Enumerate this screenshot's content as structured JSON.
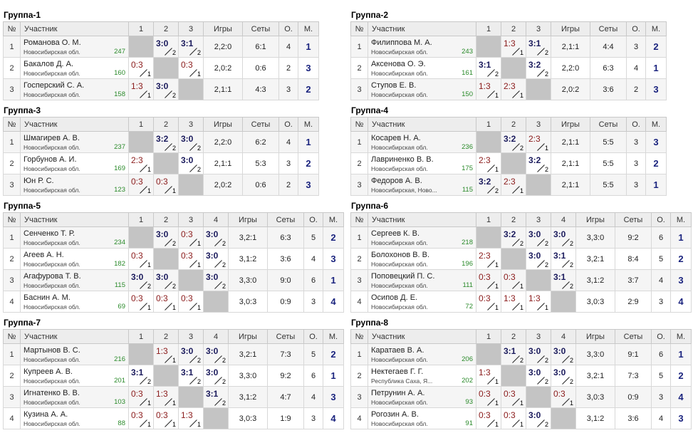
{
  "headers": {
    "num": "№",
    "name": "Участник",
    "games": "Игры",
    "sets": "Сеты",
    "points": "О.",
    "place": "М."
  },
  "groups": [
    {
      "title": "Группа-1",
      "players": [
        {
          "num": "1",
          "name": "Романова О. М.",
          "region": "Новосибирская обл.",
          "rating": "247",
          "cells": [
            null,
            {
              "s": "3:0",
              "w": "2",
              "r": "win"
            },
            {
              "s": "3:1",
              "w": "2",
              "r": "win"
            }
          ],
          "games": "2,2:0",
          "sets": "6:1",
          "points": "4",
          "place": "1"
        },
        {
          "num": "2",
          "name": "Бакалов Д. А.",
          "region": "Новосибирская обл.",
          "rating": "160",
          "cells": [
            {
              "s": "0:3",
              "w": "1",
              "r": "loss"
            },
            null,
            {
              "s": "0:3",
              "w": "1",
              "r": "loss"
            }
          ],
          "games": "2,0:2",
          "sets": "0:6",
          "points": "2",
          "place": "3"
        },
        {
          "num": "3",
          "name": "Госперский С. А.",
          "region": "Новосибирская обл.",
          "rating": "158",
          "cells": [
            {
              "s": "1:3",
              "w": "1",
              "r": "loss"
            },
            {
              "s": "3:0",
              "w": "2",
              "r": "win"
            },
            null
          ],
          "games": "2,1:1",
          "sets": "4:3",
          "points": "3",
          "place": "2"
        }
      ]
    },
    {
      "title": "Группа-2",
      "players": [
        {
          "num": "1",
          "name": "Филиппова М. А.",
          "region": "Новосибирская обл.",
          "rating": "243",
          "cells": [
            null,
            {
              "s": "1:3",
              "w": "1",
              "r": "loss"
            },
            {
              "s": "3:1",
              "w": "2",
              "r": "win"
            }
          ],
          "games": "2,1:1",
          "sets": "4:4",
          "points": "3",
          "place": "2"
        },
        {
          "num": "2",
          "name": "Аксенова О. Э.",
          "region": "Новосибирская обл.",
          "rating": "161",
          "cells": [
            {
              "s": "3:1",
              "w": "2",
              "r": "win"
            },
            null,
            {
              "s": "3:2",
              "w": "2",
              "r": "win"
            }
          ],
          "games": "2,2:0",
          "sets": "6:3",
          "points": "4",
          "place": "1"
        },
        {
          "num": "3",
          "name": "Ступов Е. В.",
          "region": "Новосибирская обл.",
          "rating": "150",
          "cells": [
            {
              "s": "1:3",
              "w": "1",
              "r": "loss"
            },
            {
              "s": "2:3",
              "w": "1",
              "r": "loss"
            },
            null
          ],
          "games": "2,0:2",
          "sets": "3:6",
          "points": "2",
          "place": "3"
        }
      ]
    },
    {
      "title": "Группа-3",
      "players": [
        {
          "num": "1",
          "name": "Шмагирев А. В.",
          "region": "Новосибирская обл.",
          "rating": "237",
          "cells": [
            null,
            {
              "s": "3:2",
              "w": "2",
              "r": "win"
            },
            {
              "s": "3:0",
              "w": "2",
              "r": "win"
            }
          ],
          "games": "2,2:0",
          "sets": "6:2",
          "points": "4",
          "place": "1"
        },
        {
          "num": "2",
          "name": "Горбунов А. И.",
          "region": "Новосибирская обл.",
          "rating": "169",
          "cells": [
            {
              "s": "2:3",
              "w": "1",
              "r": "loss"
            },
            null,
            {
              "s": "3:0",
              "w": "2",
              "r": "win"
            }
          ],
          "games": "2,1:1",
          "sets": "5:3",
          "points": "3",
          "place": "2"
        },
        {
          "num": "3",
          "name": "Юн Р. С.",
          "region": "Новосибирская обл.",
          "rating": "123",
          "cells": [
            {
              "s": "0:3",
              "w": "1",
              "r": "loss"
            },
            {
              "s": "0:3",
              "w": "1",
              "r": "loss"
            },
            null
          ],
          "games": "2,0:2",
          "sets": "0:6",
          "points": "2",
          "place": "3"
        }
      ]
    },
    {
      "title": "Группа-4",
      "players": [
        {
          "num": "1",
          "name": "Косарев Н. А.",
          "region": "Новосибирская обл.",
          "rating": "236",
          "cells": [
            null,
            {
              "s": "3:2",
              "w": "2",
              "r": "win"
            },
            {
              "s": "2:3",
              "w": "1",
              "r": "loss"
            }
          ],
          "games": "2,1:1",
          "sets": "5:5",
          "points": "3",
          "place": "3"
        },
        {
          "num": "2",
          "name": "Лавриненко В. В.",
          "region": "Новосибирская обл.",
          "rating": "175",
          "cells": [
            {
              "s": "2:3",
              "w": "1",
              "r": "loss"
            },
            null,
            {
              "s": "3:2",
              "w": "2",
              "r": "win"
            }
          ],
          "games": "2,1:1",
          "sets": "5:5",
          "points": "3",
          "place": "2"
        },
        {
          "num": "3",
          "name": "Федоров А. В.",
          "region": "Новосибирская, Ново...",
          "rating": "115",
          "cells": [
            {
              "s": "3:2",
              "w": "2",
              "r": "win"
            },
            {
              "s": "2:3",
              "w": "1",
              "r": "loss"
            },
            null
          ],
          "games": "2,1:1",
          "sets": "5:5",
          "points": "3",
          "place": "1"
        }
      ]
    },
    {
      "title": "Группа-5",
      "players": [
        {
          "num": "1",
          "name": "Сенченко Т. Р.",
          "region": "Новосибирская обл.",
          "rating": "234",
          "cells": [
            null,
            {
              "s": "3:0",
              "w": "2",
              "r": "win"
            },
            {
              "s": "0:3",
              "w": "1",
              "r": "loss"
            },
            {
              "s": "3:0",
              "w": "2",
              "r": "win"
            }
          ],
          "games": "3,2:1",
          "sets": "6:3",
          "points": "5",
          "place": "2"
        },
        {
          "num": "2",
          "name": "Агеев А. Н.",
          "region": "Новосибирская обл.",
          "rating": "182",
          "cells": [
            {
              "s": "0:3",
              "w": "1",
              "r": "loss"
            },
            null,
            {
              "s": "0:3",
              "w": "1",
              "r": "loss"
            },
            {
              "s": "3:0",
              "w": "2",
              "r": "win"
            }
          ],
          "games": "3,1:2",
          "sets": "3:6",
          "points": "4",
          "place": "3"
        },
        {
          "num": "3",
          "name": "Агафурова Т. В.",
          "region": "Новосибирская обл.",
          "rating": "115",
          "cells": [
            {
              "s": "3:0",
              "w": "2",
              "r": "win"
            },
            {
              "s": "3:0",
              "w": "2",
              "r": "win"
            },
            null,
            {
              "s": "3:0",
              "w": "2",
              "r": "win"
            }
          ],
          "games": "3,3:0",
          "sets": "9:0",
          "points": "6",
          "place": "1"
        },
        {
          "num": "4",
          "name": "Баснин А. М.",
          "region": "Новосибирская обл.",
          "rating": "69",
          "cells": [
            {
              "s": "0:3",
              "w": "1",
              "r": "loss"
            },
            {
              "s": "0:3",
              "w": "1",
              "r": "loss"
            },
            {
              "s": "0:3",
              "w": "1",
              "r": "loss"
            },
            null
          ],
          "games": "3,0:3",
          "sets": "0:9",
          "points": "3",
          "place": "4"
        }
      ]
    },
    {
      "title": "Группа-6",
      "players": [
        {
          "num": "1",
          "name": "Сергеев К. В.",
          "region": "Новосибирская обл.",
          "rating": "218",
          "cells": [
            null,
            {
              "s": "3:2",
              "w": "2",
              "r": "win"
            },
            {
              "s": "3:0",
              "w": "2",
              "r": "win"
            },
            {
              "s": "3:0",
              "w": "2",
              "r": "win"
            }
          ],
          "games": "3,3:0",
          "sets": "9:2",
          "points": "6",
          "place": "1"
        },
        {
          "num": "2",
          "name": "Болохонов В. В.",
          "region": "Новосибирская обл.",
          "rating": "196",
          "cells": [
            {
              "s": "2:3",
              "w": "1",
              "r": "loss"
            },
            null,
            {
              "s": "3:0",
              "w": "2",
              "r": "win"
            },
            {
              "s": "3:1",
              "w": "2",
              "r": "win"
            }
          ],
          "games": "3,2:1",
          "sets": "8:4",
          "points": "5",
          "place": "2"
        },
        {
          "num": "3",
          "name": "Поповецкий П. С.",
          "region": "Новосибирская обл.",
          "rating": "111",
          "cells": [
            {
              "s": "0:3",
              "w": "1",
              "r": "loss"
            },
            {
              "s": "0:3",
              "w": "1",
              "r": "loss"
            },
            null,
            {
              "s": "3:1",
              "w": "2",
              "r": "win"
            }
          ],
          "games": "3,1:2",
          "sets": "3:7",
          "points": "4",
          "place": "3"
        },
        {
          "num": "4",
          "name": "Осипов Д. Е.",
          "region": "Новосибирская обл.",
          "rating": "72",
          "cells": [
            {
              "s": "0:3",
              "w": "1",
              "r": "loss"
            },
            {
              "s": "1:3",
              "w": "1",
              "r": "loss"
            },
            {
              "s": "1:3",
              "w": "1",
              "r": "loss"
            },
            null
          ],
          "games": "3,0:3",
          "sets": "2:9",
          "points": "3",
          "place": "4"
        }
      ]
    },
    {
      "title": "Группа-7",
      "players": [
        {
          "num": "1",
          "name": "Мартынов В. С.",
          "region": "Новосибирская обл.",
          "rating": "216",
          "cells": [
            null,
            {
              "s": "1:3",
              "w": "1",
              "r": "loss"
            },
            {
              "s": "3:0",
              "w": "2",
              "r": "win"
            },
            {
              "s": "3:0",
              "w": "2",
              "r": "win"
            }
          ],
          "games": "3,2:1",
          "sets": "7:3",
          "points": "5",
          "place": "2"
        },
        {
          "num": "2",
          "name": "Купреев А. В.",
          "region": "Новосибирская обл.",
          "rating": "201",
          "cells": [
            {
              "s": "3:1",
              "w": "2",
              "r": "win"
            },
            null,
            {
              "s": "3:1",
              "w": "2",
              "r": "win"
            },
            {
              "s": "3:0",
              "w": "2",
              "r": "win"
            }
          ],
          "games": "3,3:0",
          "sets": "9:2",
          "points": "6",
          "place": "1"
        },
        {
          "num": "3",
          "name": "Игнатенко В. В.",
          "region": "Новосибирская обл.",
          "rating": "103",
          "cells": [
            {
              "s": "0:3",
              "w": "1",
              "r": "loss"
            },
            {
              "s": "1:3",
              "w": "1",
              "r": "loss"
            },
            null,
            {
              "s": "3:1",
              "w": "2",
              "r": "win"
            }
          ],
          "games": "3,1:2",
          "sets": "4:7",
          "points": "4",
          "place": "3"
        },
        {
          "num": "4",
          "name": "Кузина А. А.",
          "region": "Новосибирская обл.",
          "rating": "88",
          "cells": [
            {
              "s": "0:3",
              "w": "1",
              "r": "loss"
            },
            {
              "s": "0:3",
              "w": "1",
              "r": "loss"
            },
            {
              "s": "1:3",
              "w": "1",
              "r": "loss"
            },
            null
          ],
          "games": "3,0:3",
          "sets": "1:9",
          "points": "3",
          "place": "4"
        }
      ]
    },
    {
      "title": "Группа-8",
      "players": [
        {
          "num": "1",
          "name": "Каратаев В. А.",
          "region": "Новосибирская обл.",
          "rating": "206",
          "cells": [
            null,
            {
              "s": "3:1",
              "w": "2",
              "r": "win"
            },
            {
              "s": "3:0",
              "w": "2",
              "r": "win"
            },
            {
              "s": "3:0",
              "w": "2",
              "r": "win"
            }
          ],
          "games": "3,3:0",
          "sets": "9:1",
          "points": "6",
          "place": "1"
        },
        {
          "num": "2",
          "name": "Нектегаев Г. Г.",
          "region": "Республика Саха, Я...",
          "rating": "202",
          "cells": [
            {
              "s": "1:3",
              "w": "1",
              "r": "loss"
            },
            null,
            {
              "s": "3:0",
              "w": "2",
              "r": "win"
            },
            {
              "s": "3:0",
              "w": "2",
              "r": "win"
            }
          ],
          "games": "3,2:1",
          "sets": "7:3",
          "points": "5",
          "place": "2"
        },
        {
          "num": "3",
          "name": "Петрунин А. А.",
          "region": "Новосибирская обл.",
          "rating": "93",
          "cells": [
            {
              "s": "0:3",
              "w": "1",
              "r": "loss"
            },
            {
              "s": "0:3",
              "w": "1",
              "r": "loss"
            },
            null,
            {
              "s": "0:3",
              "w": "1",
              "r": "loss"
            }
          ],
          "games": "3,0:3",
          "sets": "0:9",
          "points": "3",
          "place": "4"
        },
        {
          "num": "4",
          "name": "Рогозин А. В.",
          "region": "Новосибирская обл.",
          "rating": "91",
          "cells": [
            {
              "s": "0:3",
              "w": "1",
              "r": "loss"
            },
            {
              "s": "0:3",
              "w": "1",
              "r": "loss"
            },
            {
              "s": "3:0",
              "w": "2",
              "r": "win"
            },
            null
          ],
          "games": "3,1:2",
          "sets": "3:6",
          "points": "4",
          "place": "3"
        }
      ]
    }
  ]
}
